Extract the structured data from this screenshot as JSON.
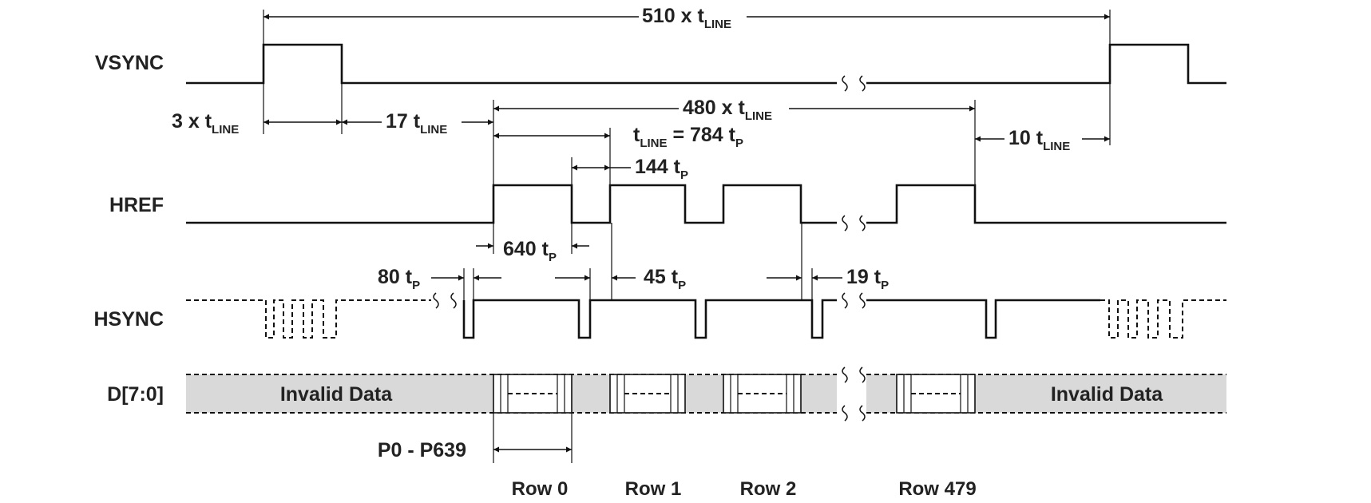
{
  "signals": {
    "vsync": "VSYNC",
    "href": "HREF",
    "hsync": "HSYNC",
    "data": "D[7:0]"
  },
  "timing": {
    "frame_main": "510 x t",
    "frame_sub": "LINE",
    "vsync_pulse_main": "3 x t",
    "vsync_pulse_sub": "LINE",
    "back_porch_main": "17 t",
    "back_porch_sub": "LINE",
    "active_main": "480 x t",
    "active_sub": "LINE",
    "line_main": "t",
    "line_sub": "LINE",
    "line_eq": " = 784 t",
    "line_eq_sub": "P",
    "front_porch_main": "10 t",
    "front_porch_sub": "LINE",
    "href_low_main": "144 t",
    "href_low_sub": "P",
    "href_high_main": "640 t",
    "href_high_sub": "P",
    "hsync_lead_main": "80 t",
    "hsync_lead_sub": "P",
    "hsync_a_main": "45 t",
    "hsync_a_sub": "P",
    "hsync_b_main": "19 t",
    "hsync_b_sub": "P"
  },
  "data_bus": {
    "invalid_left": "Invalid Data",
    "invalid_right": "Invalid Data",
    "pixel_range": "P0 - P639"
  },
  "rows": [
    "Row 0",
    "Row 1",
    "Row 2",
    "Row 479"
  ],
  "colors": {
    "line": "#111111",
    "text": "#222222",
    "data_fill": "#d9d9d9"
  }
}
